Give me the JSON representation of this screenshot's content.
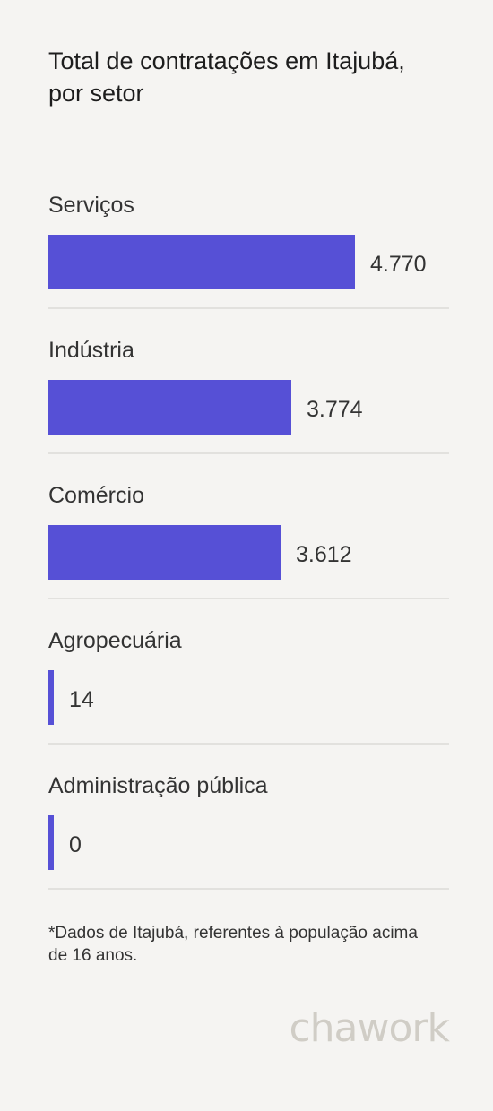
{
  "header": {
    "title": "Total de contratações em Itajubá, por setor"
  },
  "chart_data": {
    "type": "bar",
    "orientation": "horizontal",
    "categories": [
      "Serviços",
      "Indústria",
      "Comércio",
      "Agropecuária",
      "Administração pública"
    ],
    "values": [
      4770,
      3774,
      3612,
      14,
      0
    ],
    "value_labels": [
      "4.770",
      "3.774",
      "3.612",
      "14",
      "0"
    ],
    "bar_color": "#5650d6",
    "grid": false
  },
  "footnote": "*Dados de Itajubá, referentes à população acima de 16 anos.",
  "brand": {
    "logo_text": "chawork"
  }
}
